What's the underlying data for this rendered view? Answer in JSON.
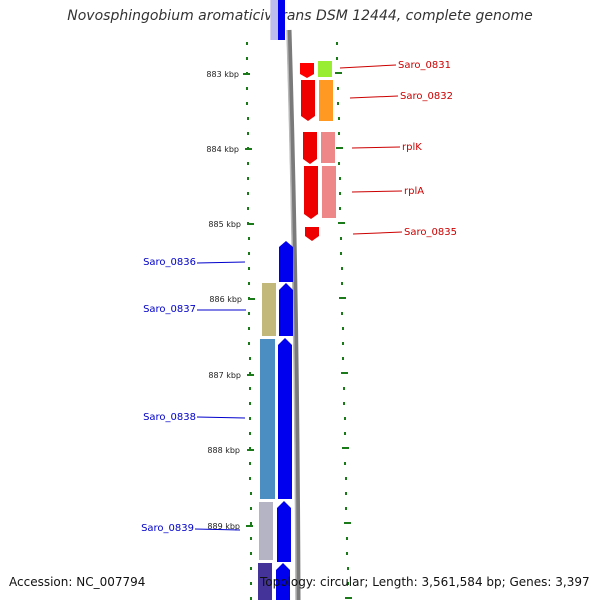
{
  "title": "Novosphingobium aromaticivorans DSM 12444, complete genome",
  "accession_text": "Accession: NC_007794",
  "info_text": "Topology: circular; Length: 3,561,584 bp; Genes: 3,397",
  "colors": {
    "plus_strand_label": "#cc0000",
    "minus_strand_label": "#0000cc",
    "tick": "#1a7a1a",
    "backbone": "#7a7a7a"
  },
  "scale": {
    "unit": "kbp",
    "labels": [
      {
        "kbp": 883,
        "text": "883 kbp"
      },
      {
        "kbp": 884,
        "text": "884 kbp"
      },
      {
        "kbp": 885,
        "text": "885 kbp"
      },
      {
        "kbp": 886,
        "text": "886 kbp"
      },
      {
        "kbp": 887,
        "text": "887 kbp"
      },
      {
        "kbp": 888,
        "text": "888 kbp"
      },
      {
        "kbp": 889,
        "text": "889 kbp"
      }
    ]
  },
  "plus_genes": [
    {
      "label": "Saro_0831",
      "color": "#99ee33"
    },
    {
      "label": "Saro_0832",
      "color": "#ff9922"
    },
    {
      "label": "rplK",
      "color": "#ee8888"
    },
    {
      "label": "rplA",
      "color": "#ee8888"
    },
    {
      "label": "Saro_0835",
      "color": ""
    }
  ],
  "minus_genes": [
    {
      "label": "Saro_0836",
      "color": ""
    },
    {
      "label": "Saro_0837",
      "color": "#c2b87a"
    },
    {
      "label": "Saro_0838",
      "color": "#4a8ec2"
    },
    {
      "label": "Saro_0839",
      "color": "#b4b4c4"
    }
  ]
}
